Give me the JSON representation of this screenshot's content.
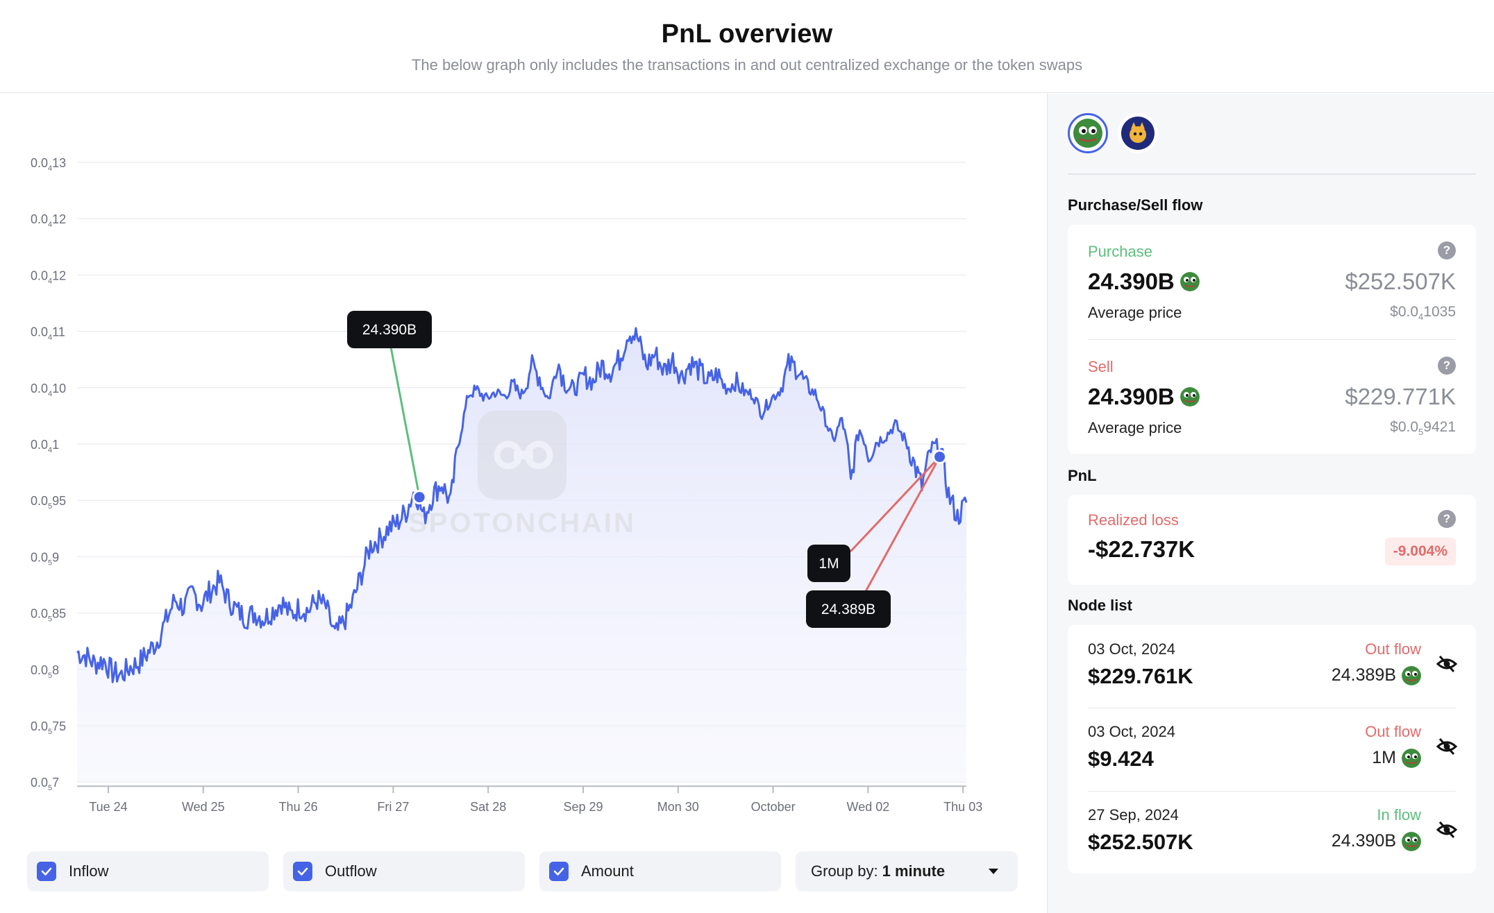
{
  "header": {
    "title": "PnL overview",
    "subtitle": "The below graph only includes the transactions in and out centralized exchange or the token swaps"
  },
  "chart_data": {
    "type": "line",
    "y_ticks": [
      {
        "base": "0.0",
        "sub": "4",
        "tail": "13"
      },
      {
        "base": "0.0",
        "sub": "4",
        "tail": "12"
      },
      {
        "base": "0.0",
        "sub": "4",
        "tail": "12"
      },
      {
        "base": "0.0",
        "sub": "4",
        "tail": "11"
      },
      {
        "base": "0.0",
        "sub": "4",
        "tail": "10"
      },
      {
        "base": "0.0",
        "sub": "4",
        "tail": "1"
      },
      {
        "base": "0.0",
        "sub": "5",
        "tail": "95"
      },
      {
        "base": "0.0",
        "sub": "5",
        "tail": "9"
      },
      {
        "base": "0.0",
        "sub": "5",
        "tail": "85"
      },
      {
        "base": "0.0",
        "sub": "5",
        "tail": "8"
      },
      {
        "base": "0.0",
        "sub": "5",
        "tail": "75"
      },
      {
        "base": "0.0",
        "sub": "5",
        "tail": "7"
      }
    ],
    "x_ticks": [
      "Tue 24",
      "Wed 25",
      "Thu 26",
      "Fri 27",
      "Sat 28",
      "Sep 29",
      "Mon 30",
      "October",
      "Wed 02",
      "Thu 03"
    ],
    "series_color": "#4663e6",
    "price_values_x1e6": [
      0.0815,
      0.0812,
      0.0805,
      0.0808,
      0.0797,
      0.0795,
      0.0802,
      0.0806,
      0.0815,
      0.0825,
      0.0843,
      0.0862,
      0.0855,
      0.0868,
      0.0858,
      0.087,
      0.0878,
      0.0862,
      0.0852,
      0.0846,
      0.085,
      0.0845,
      0.0852,
      0.086,
      0.0848,
      0.0855,
      0.0852,
      0.0862,
      0.0855,
      0.083,
      0.0842,
      0.086,
      0.0885,
      0.091,
      0.0915,
      0.0925,
      0.093,
      0.094,
      0.096,
      0.0935,
      0.0955,
      0.0965,
      0.0948,
      0.101,
      0.1088,
      0.1095,
      0.108,
      0.1092,
      0.1085,
      0.11,
      0.1088,
      0.112,
      0.111,
      0.108,
      0.1125,
      0.11,
      0.1095,
      0.111,
      0.1105,
      0.112,
      0.1115,
      0.1125,
      0.115,
      0.1145,
      0.112,
      0.113,
      0.1115,
      0.1125,
      0.111,
      0.1122,
      0.1115,
      0.1105,
      0.1112,
      0.1098,
      0.1105,
      0.1092,
      0.1088,
      0.1055,
      0.108,
      0.1095,
      0.112,
      0.1118,
      0.11,
      0.109,
      0.105,
      0.1005,
      0.1045,
      0.0965,
      0.1025,
      0.099,
      0.1005,
      0.1015,
      0.1035,
      0.101,
      0.0985,
      0.0962,
      0.0995,
      0.1,
      0.0955,
      0.0935,
      0.0948
    ],
    "markers": [
      {
        "label": "24.390B",
        "type": "inflow"
      },
      {
        "label": "1M",
        "type": "outflow"
      },
      {
        "label": "24.389B",
        "type": "outflow"
      }
    ],
    "inflow_color": "#5cbe7b",
    "outflow_color": "#e36a6a",
    "watermark": "SPOTONCHAIN"
  },
  "controls": {
    "inflow": "Inflow",
    "outflow": "Outflow",
    "amount": "Amount",
    "group_label": "Group by:",
    "group_value": "1 minute"
  },
  "sidebar": {
    "flow_title": "Purchase/Sell flow",
    "purchase": {
      "label": "Purchase",
      "amount": "24.390B",
      "usd": "$252.507K",
      "avg_label": "Average price",
      "avg_base": "$0.0",
      "avg_sub": "4",
      "avg_tail": "1035"
    },
    "sell": {
      "label": "Sell",
      "amount": "24.390B",
      "usd": "$229.771K",
      "avg_label": "Average price",
      "avg_base": "$0.0",
      "avg_sub": "5",
      "avg_tail": "9421"
    },
    "pnl_title": "PnL",
    "pnl": {
      "label": "Realized loss",
      "value": "-$22.737K",
      "percent": "-9.004%"
    },
    "node_title": "Node list",
    "nodes": [
      {
        "date": "03 Oct, 2024",
        "usd": "$229.761K",
        "flow": "Out flow",
        "amount": "24.389B"
      },
      {
        "date": "03 Oct, 2024",
        "usd": "$9.424",
        "flow": "Out flow",
        "amount": "1M"
      },
      {
        "date": "27 Sep, 2024",
        "usd": "$252.507K",
        "flow": "In flow",
        "amount": "24.390B"
      }
    ]
  }
}
